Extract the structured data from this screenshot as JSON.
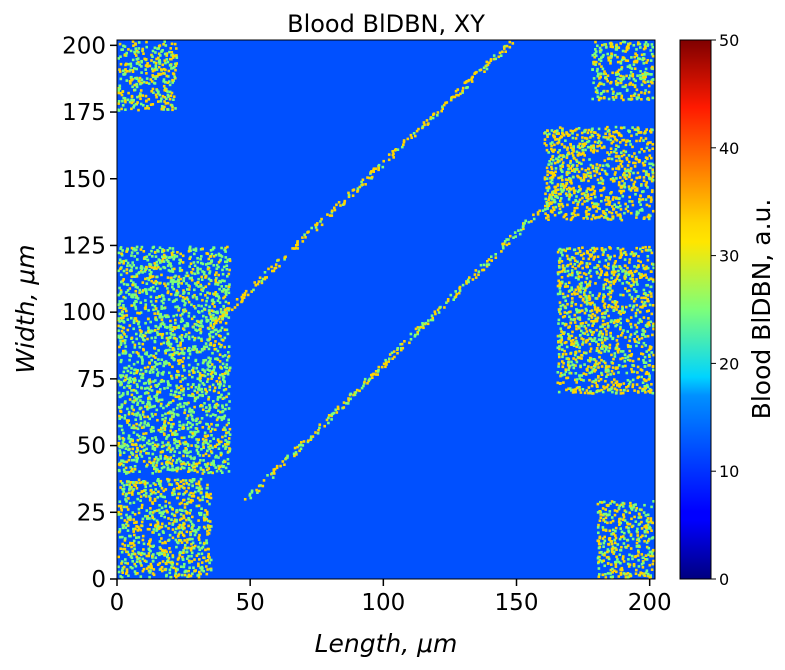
{
  "chart_data": {
    "type": "heatmap",
    "title": "Blood BlDBN, XY",
    "xlabel": "Length, μm",
    "ylabel": "Width, μm",
    "xlim": [
      0,
      202
    ],
    "ylim": [
      0,
      202
    ],
    "xticks": [
      0,
      50,
      100,
      150,
      200
    ],
    "yticks": [
      0,
      25,
      50,
      75,
      100,
      125,
      150,
      175,
      200
    ],
    "colorbar": {
      "label": "Blood BlDBN, a.u.",
      "range": [
        0,
        50
      ],
      "ticks": [
        0,
        10,
        20,
        30,
        40,
        50
      ],
      "colormap": "jet"
    },
    "background_value": 10,
    "colors": {
      "background": "#0050ff",
      "low_speckle": "#7dff7a",
      "high_speckle": "#ffd600"
    },
    "regions": [
      {
        "name": "top-left corner cluster",
        "x": [
          0,
          22
        ],
        "y": [
          176,
          202
        ],
        "value": 32
      },
      {
        "name": "top-right corner cluster",
        "x": [
          178,
          202
        ],
        "y": [
          180,
          202
        ],
        "value": 32
      },
      {
        "name": "bottom-left corner cluster",
        "x": [
          0,
          35
        ],
        "y": [
          0,
          38
        ],
        "value": 32
      },
      {
        "name": "bottom-right corner cluster",
        "x": [
          180,
          202
        ],
        "y": [
          0,
          30
        ],
        "value": 32
      },
      {
        "name": "upper-right blob",
        "x": [
          160,
          202
        ],
        "y": [
          135,
          170
        ],
        "value": 34
      },
      {
        "name": "right band",
        "x": [
          165,
          202
        ],
        "y": [
          70,
          125
        ],
        "value": 33
      },
      {
        "name": "left arc",
        "x": [
          0,
          42
        ],
        "y": [
          40,
          125
        ],
        "value": 30
      }
    ],
    "lines": [
      {
        "name": "upper diagonal",
        "from": [
          35,
          95
        ],
        "to": [
          148,
          202
        ],
        "value": 33
      },
      {
        "name": "lower diagonal",
        "from": [
          48,
          30
        ],
        "to": [
          168,
          148
        ],
        "value": 31
      }
    ]
  }
}
